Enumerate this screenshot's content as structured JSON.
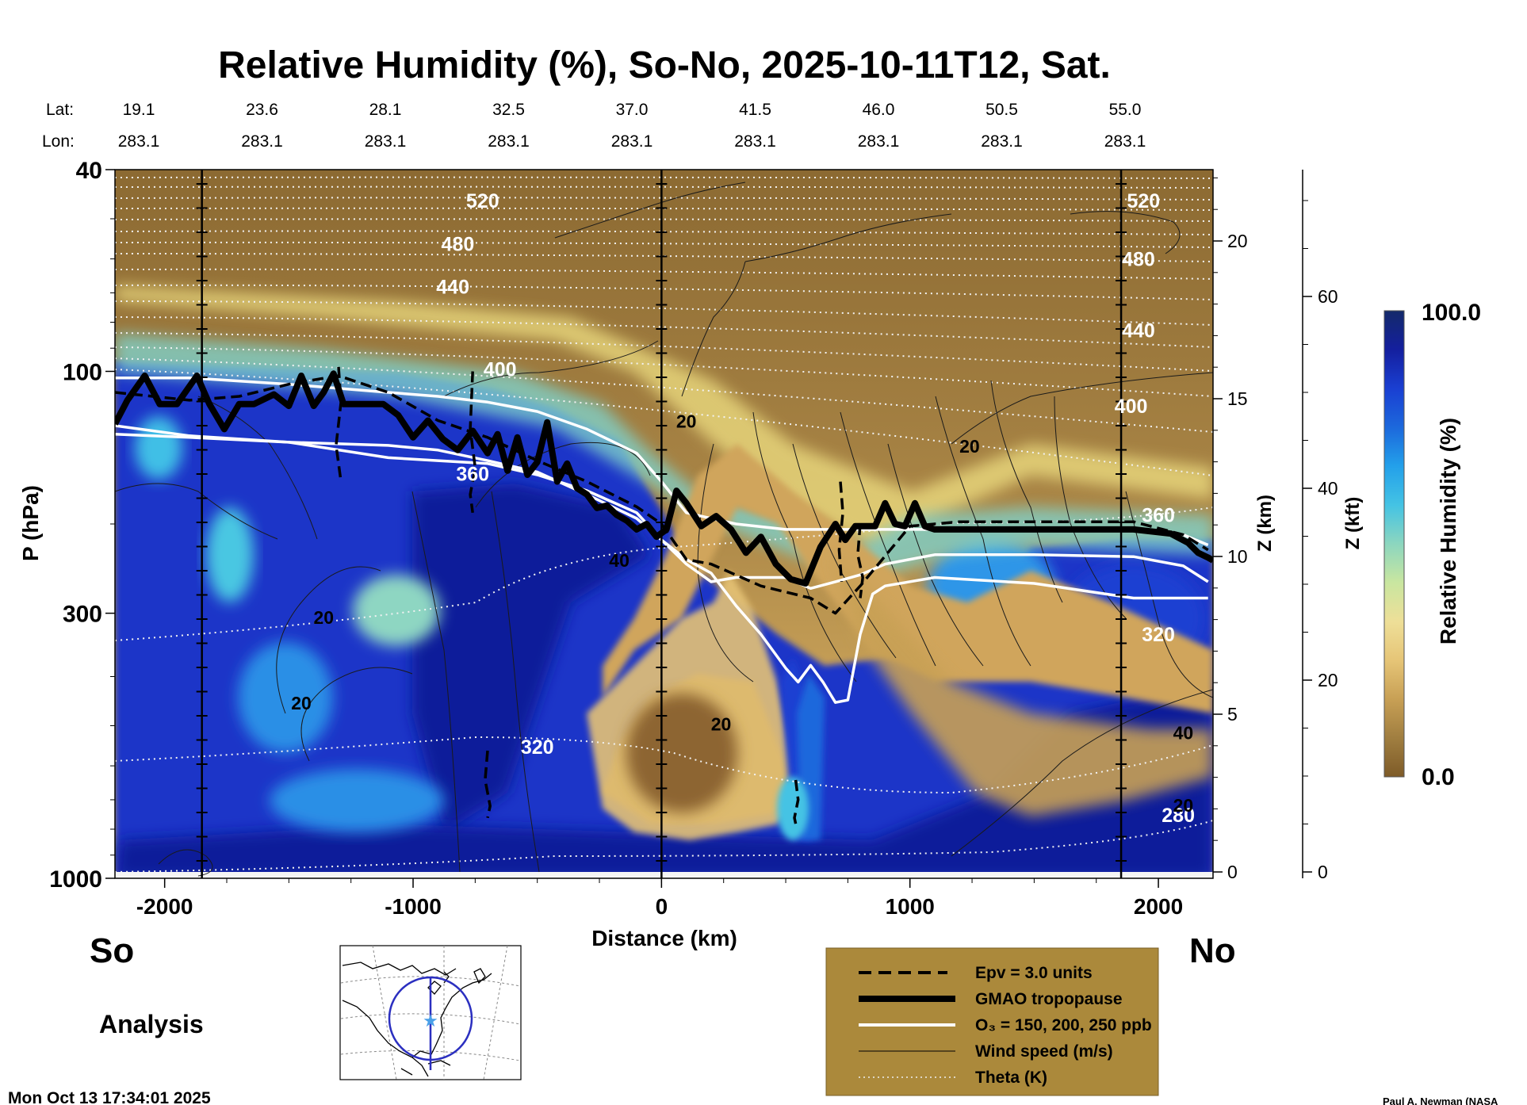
{
  "chart_data": {
    "type": "heatmap",
    "title": "Relative Humidity (%), So-No, 2025-10-11T12, Sat.",
    "xlabel": "Distance (km)",
    "ylabel": "P (hPa)",
    "xlim": [
      -2200,
      2220
    ],
    "x_ticks": [
      -2000,
      -1000,
      0,
      1000,
      2000
    ],
    "x_tick_labels": [
      "-2000",
      "-1000",
      "0",
      "1000",
      "2000"
    ],
    "y_scale": "log",
    "ylim": [
      1000,
      40
    ],
    "y_ticks": [
      40,
      100,
      300,
      1000
    ],
    "y_tick_labels": [
      "40",
      "100",
      "300",
      "1000"
    ],
    "z_km_label": "Z (km)",
    "z_km_ticks": [
      {
        "value": 0,
        "label": "0"
      },
      {
        "value": 5,
        "label": "5"
      },
      {
        "value": 10,
        "label": "10"
      },
      {
        "value": 15,
        "label": "15"
      },
      {
        "value": 20,
        "label": "20"
      }
    ],
    "z_kft_label": "Z (kft)",
    "z_kft_ticks": [
      {
        "value": 0,
        "label": "0"
      },
      {
        "value": 20,
        "label": "20"
      },
      {
        "value": 40,
        "label": "40"
      },
      {
        "value": 60,
        "label": "60"
      }
    ],
    "top_axis": {
      "lat_label": "Lat:",
      "lon_label": "Lon:",
      "points": [
        {
          "x": -1850,
          "lat": "19.1",
          "lon": "283.1"
        },
        {
          "x": -1350,
          "lat": "23.6",
          "lon": "283.1"
        },
        {
          "x": -850,
          "lat": "28.1",
          "lon": "283.1"
        },
        {
          "x": -350,
          "lat": "32.5",
          "lon": "283.1"
        },
        {
          "x": 150,
          "lat": "37.0",
          "lon": "283.1"
        },
        {
          "x": 650,
          "lat": "41.5",
          "lon": "283.1"
        },
        {
          "x": 1150,
          "lat": "46.0",
          "lon": "283.1"
        },
        {
          "x": 1650,
          "lat": "50.5",
          "lon": "283.1"
        },
        {
          "x": 2150,
          "lat": "55.0",
          "lon": "283.1"
        }
      ]
    },
    "vertical_markers_km": [
      -1850,
      0,
      1850
    ],
    "colorbar": {
      "label": "Relative Humidity (%)",
      "min_label": "0.0",
      "max_label": "100.0",
      "min": 0,
      "max": 100,
      "colors": [
        "#7e5b28",
        "#a07e40",
        "#c8a055",
        "#e6c577",
        "#eedf98",
        "#c9e6a0",
        "#8cd6bf",
        "#44c3e4",
        "#23a0ea",
        "#1c68dc",
        "#1a3fd2",
        "#141f9e",
        "#142a6a"
      ]
    },
    "theta_labels": [
      {
        "x": -720,
        "p": 46,
        "label": "520"
      },
      {
        "x": -820,
        "p": 56,
        "label": "480"
      },
      {
        "x": -840,
        "p": 68,
        "label": "440"
      },
      {
        "x": -650,
        "p": 99,
        "label": "400"
      },
      {
        "x": -760,
        "p": 159,
        "label": "360"
      },
      {
        "x": -500,
        "p": 550,
        "label": "320"
      },
      {
        "x": 1940,
        "p": 46,
        "label": "520"
      },
      {
        "x": 1920,
        "p": 60,
        "label": "480"
      },
      {
        "x": 1920,
        "p": 83,
        "label": "440"
      },
      {
        "x": 1890,
        "p": 117,
        "label": "400"
      },
      {
        "x": 2000,
        "p": 192,
        "label": "360"
      },
      {
        "x": 2000,
        "p": 330,
        "label": "320"
      },
      {
        "x": 2080,
        "p": 750,
        "label": "280"
      }
    ],
    "wind_labels": [
      {
        "x": -1360,
        "p": 305,
        "label": "20"
      },
      {
        "x": -1450,
        "p": 450,
        "label": "20"
      },
      {
        "x": 100,
        "p": 125,
        "label": "20"
      },
      {
        "x": 1240,
        "p": 140,
        "label": "20"
      },
      {
        "x": -170,
        "p": 235,
        "label": "40"
      },
      {
        "x": 240,
        "p": 495,
        "label": "20"
      },
      {
        "x": 2100,
        "p": 515,
        "label": "40"
      },
      {
        "x": 2100,
        "p": 715,
        "label": "20"
      }
    ],
    "legend": {
      "entries": [
        {
          "style": "dashed",
          "label": "Epv = 3.0 units"
        },
        {
          "style": "thick",
          "label": "GMAO tropopause"
        },
        {
          "style": "white",
          "label": "O₃ = 150, 200, 250 ppb"
        },
        {
          "style": "thin",
          "label": "Wind speed (m/s)"
        },
        {
          "style": "dotted",
          "label": "Theta (K)"
        }
      ]
    },
    "tropopause": {
      "x": [
        -2200,
        -2150,
        -2080,
        -2020,
        -1950,
        -1870,
        -1820,
        -1760,
        -1700,
        -1640,
        -1560,
        -1500,
        -1450,
        -1400,
        -1360,
        -1320,
        -1280,
        -1240,
        -1180,
        -1120,
        -1060,
        -1000,
        -940,
        -880,
        -820,
        -760,
        -700,
        -660,
        -620,
        -580,
        -540,
        -500,
        -460,
        -420,
        -380,
        -340,
        -300,
        -260,
        -220,
        -180,
        -140,
        -100,
        -60,
        -20,
        20,
        60,
        100,
        160,
        220,
        280,
        340,
        400,
        460,
        520,
        580,
        640,
        700,
        740,
        780,
        820,
        860,
        900,
        940,
        980,
        1020,
        1060,
        1100,
        1400,
        1700,
        1900,
        2050,
        2120,
        2160,
        2200,
        2220
      ],
      "p": [
        127,
        114,
        102,
        116,
        116,
        102,
        116,
        130,
        116,
        116,
        111,
        117,
        102,
        117,
        110,
        101,
        116,
        116,
        116,
        116,
        122,
        135,
        125,
        136,
        143,
        131,
        145,
        133,
        157,
        135,
        160,
        151,
        126,
        165,
        152,
        170,
        175,
        186,
        184,
        192,
        197,
        205,
        200,
        212,
        205,
        172,
        182,
        202,
        193,
        205,
        228,
        212,
        240,
        257,
        262,
        222,
        200,
        215,
        202,
        202,
        202,
        182,
        200,
        202,
        182,
        202,
        205,
        205,
        205,
        205,
        209,
        218,
        228,
        233,
        236
      ]
    },
    "o3_contours": [
      {
        "label": "150",
        "x": [
          -2200,
          -1900,
          -1500,
          -1100,
          -900,
          -700,
          -500,
          -300,
          -100,
          0,
          100,
          200,
          300,
          500,
          700,
          900,
          1100,
          1500,
          1900,
          2100,
          2200
        ],
        "p": [
          103,
          103,
          106,
          110,
          112,
          115,
          120,
          130,
          145,
          165,
          190,
          195,
          200,
          205,
          205,
          205,
          205,
          205,
          205,
          210,
          220
        ]
      },
      {
        "label": "200",
        "x": [
          -2200,
          -1900,
          -1500,
          -1100,
          -900,
          -700,
          -500,
          -300,
          -100,
          0,
          100,
          200,
          300,
          500,
          600,
          700,
          800,
          900,
          1100,
          1500,
          1900,
          2100,
          2200
        ],
        "p": [
          133,
          135,
          138,
          140,
          143,
          150,
          158,
          175,
          195,
          215,
          240,
          260,
          255,
          255,
          268,
          260,
          252,
          240,
          230,
          230,
          232,
          242,
          260
        ]
      },
      {
        "label": "250",
        "x": [
          -2200,
          -1900,
          -1500,
          -1100,
          -900,
          -700,
          -500,
          -300,
          -100,
          0,
          100,
          200,
          300,
          400,
          500,
          550,
          600,
          650,
          700,
          750,
          800,
          850,
          900,
          1100,
          1500,
          1900,
          2100,
          2200
        ],
        "p": [
          128,
          134,
          138,
          148,
          150,
          152,
          160,
          172,
          190,
          215,
          235,
          250,
          290,
          330,
          385,
          410,
          380,
          410,
          450,
          445,
          330,
          275,
          265,
          255,
          262,
          280,
          280,
          280
        ]
      }
    ],
    "epv_contours": [
      {
        "x": [
          -2200,
          -1900,
          -1700,
          -1500,
          -1300,
          -1100,
          -900,
          -700,
          -500,
          -300,
          -100,
          0,
          100,
          200,
          400,
          600,
          700,
          800,
          1000,
          1200,
          1500,
          1900,
          2100,
          2200
        ],
        "p": [
          110,
          114,
          112,
          106,
          102,
          110,
          125,
          135,
          150,
          165,
          185,
          200,
          235,
          240,
          265,
          280,
          300,
          265,
          202,
          198,
          198,
          198,
          210,
          225
        ]
      }
    ]
  }
}
